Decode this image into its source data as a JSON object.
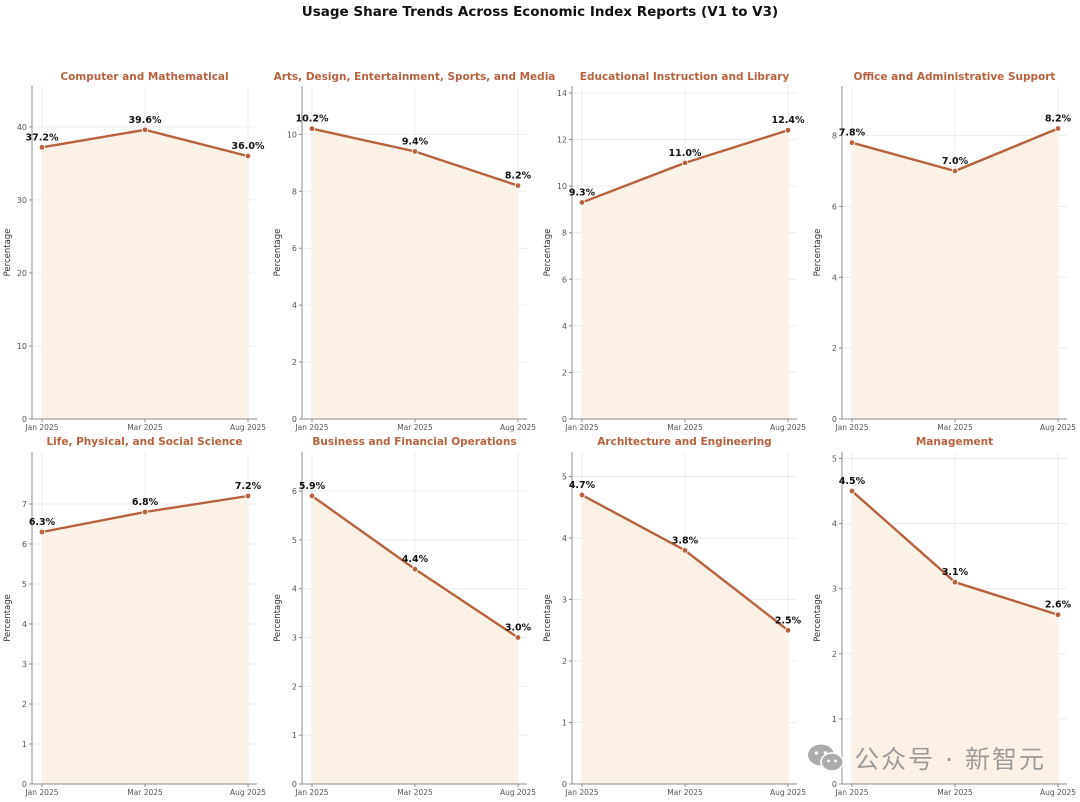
{
  "title": "Usage Share Trends Across Economic Index Reports (V1 to V3)",
  "colors": {
    "line": "#b8613f",
    "fill": "#fbf1e6",
    "title": "#b8613f",
    "grid": "#ececec",
    "axis": "#8c8c8c"
  },
  "watermark": {
    "text": "公众号 · 新智元",
    "icon": "wechat-logo-icon"
  },
  "chart_data": [
    {
      "type": "area",
      "title": "Computer and Mathematical",
      "ylabel": "Percentage",
      "x": [
        "Jan 2025",
        "Mar 2025",
        "Aug 2025"
      ],
      "values": [
        37.2,
        39.6,
        36.0
      ],
      "data_labels": [
        "37.2%",
        "39.6%",
        "36.0%"
      ],
      "ylim": [
        0,
        45.6
      ],
      "yticks": [
        0,
        10,
        20,
        30,
        40
      ],
      "grid": true
    },
    {
      "type": "area",
      "title": "Arts, Design, Entertainment, Sports, and Media",
      "ylabel": "Percentage",
      "x": [
        "Jan 2025",
        "Mar 2025",
        "Aug 2025"
      ],
      "values": [
        10.2,
        9.4,
        8.2
      ],
      "data_labels": [
        "10.2%",
        "9.4%",
        "8.2%"
      ],
      "ylim": [
        0,
        11.7
      ],
      "yticks": [
        0,
        2,
        4,
        6,
        8,
        10
      ],
      "grid": true
    },
    {
      "type": "area",
      "title": "Educational Instruction and Library",
      "ylabel": "Percentage",
      "x": [
        "Jan 2025",
        "Mar 2025",
        "Aug 2025"
      ],
      "values": [
        9.3,
        11.0,
        12.4
      ],
      "data_labels": [
        "9.3%",
        "11.0%",
        "12.4%"
      ],
      "ylim": [
        0,
        14.3
      ],
      "yticks": [
        0,
        2,
        4,
        6,
        8,
        10,
        12,
        14
      ],
      "grid": true
    },
    {
      "type": "area",
      "title": "Office and Administrative Support",
      "ylabel": "Percentage",
      "x": [
        "Jan 2025",
        "Mar 2025",
        "Aug 2025"
      ],
      "values": [
        7.8,
        7.0,
        8.2
      ],
      "data_labels": [
        "7.8%",
        "7.0%",
        "8.2%"
      ],
      "ylim": [
        0,
        9.4
      ],
      "yticks": [
        0,
        2,
        4,
        6,
        8
      ],
      "grid": true
    },
    {
      "type": "area",
      "title": "Life, Physical, and Social Science",
      "ylabel": "Percentage",
      "x": [
        "Jan 2025",
        "Mar 2025",
        "Aug 2025"
      ],
      "values": [
        6.3,
        6.8,
        7.2
      ],
      "data_labels": [
        "6.3%",
        "6.8%",
        "7.2%"
      ],
      "ylim": [
        0,
        8.3
      ],
      "yticks": [
        0,
        1,
        2,
        3,
        4,
        5,
        6,
        7
      ],
      "grid": true
    },
    {
      "type": "area",
      "title": "Business and Financial Operations",
      "ylabel": "Percentage",
      "x": [
        "Jan 2025",
        "Mar 2025",
        "Aug 2025"
      ],
      "values": [
        5.9,
        4.4,
        3.0
      ],
      "data_labels": [
        "5.9%",
        "4.4%",
        "3.0%"
      ],
      "ylim": [
        0,
        6.8
      ],
      "yticks": [
        0,
        1,
        2,
        3,
        4,
        5,
        6
      ],
      "grid": true
    },
    {
      "type": "area",
      "title": "Architecture and Engineering",
      "ylabel": "Percentage",
      "x": [
        "Jan 2025",
        "Mar 2025",
        "Aug 2025"
      ],
      "values": [
        4.7,
        3.8,
        2.5
      ],
      "data_labels": [
        "4.7%",
        "3.8%",
        "2.5%"
      ],
      "ylim": [
        0,
        5.4
      ],
      "yticks": [
        0,
        1,
        2,
        3,
        4,
        5
      ],
      "grid": true
    },
    {
      "type": "area",
      "title": "Management",
      "ylabel": "Percentage",
      "x": [
        "Jan 2025",
        "Mar 2025",
        "Aug 2025"
      ],
      "values": [
        4.5,
        3.1,
        2.6
      ],
      "data_labels": [
        "4.5%",
        "3.1%",
        "2.6%"
      ],
      "ylim": [
        0,
        5.1
      ],
      "yticks": [
        0,
        1,
        2,
        3,
        4,
        5
      ],
      "grid": true
    }
  ]
}
